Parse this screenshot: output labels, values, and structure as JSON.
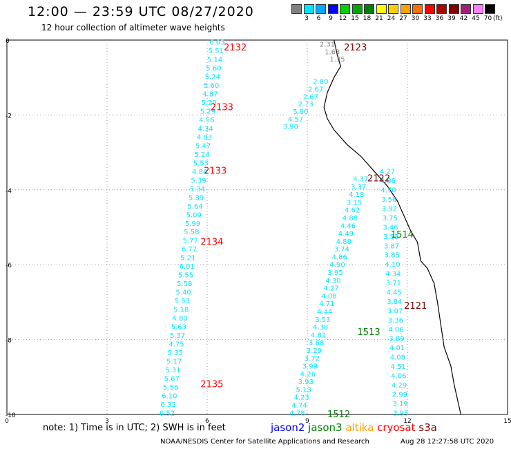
{
  "title": "12:00 — 23:59 UTC 08/27/2020",
  "subtitle": "12 hour collection of altimeter wave heights",
  "legend": {
    "ticks": [
      "3",
      "6",
      "9",
      "12",
      "15",
      "18",
      "21",
      "24",
      "27",
      "30",
      "33",
      "36",
      "39",
      "42",
      "45",
      "70"
    ],
    "unit": "(ft)",
    "colors": [
      "#808080",
      "#00e5ff",
      "#00a8ff",
      "#0000ff",
      "#00d000",
      "#00a800",
      "#008000",
      "#ffff00",
      "#ffd000",
      "#ffa000",
      "#ff7000",
      "#ff0000",
      "#b00000",
      "#800000",
      "#a0207a",
      "#ff80ff",
      "#000000"
    ]
  },
  "map": {
    "x_ticks": [
      "0",
      "3",
      "6",
      "9",
      "12",
      "15"
    ],
    "y_ticks": [
      "0",
      "-2",
      "-4",
      "-6",
      "-8",
      "-10"
    ],
    "xlim": [
      0,
      15
    ],
    "ylim": [
      -10,
      0
    ],
    "tracks": [
      {
        "color": "#00e5ff",
        "x0": 6.3,
        "x1": 4.8,
        "labels": [
          "6.03",
          "5.51",
          "5.14",
          "5.60",
          "5.24",
          "5.60",
          "4.87",
          "5.20",
          "5.29",
          "4.56",
          "4.34",
          "4.83",
          "5.47",
          "5.24",
          "5.53",
          "4.84",
          "5.39",
          "5.34",
          "5.39",
          "5.64",
          "5.09",
          "5.99",
          "5.58",
          "5.77",
          "6.77",
          "5.21",
          "6.01",
          "5.55",
          "5.58",
          "5.40",
          "5.53",
          "5.18",
          "4.80",
          "5.63",
          "5.37",
          "4.75",
          "5.35",
          "5.17",
          "5.31",
          "5.67",
          "5.56",
          "6.10",
          "6.32",
          "6.52"
        ]
      },
      {
        "color": "#00e5ff",
        "x0": 9.4,
        "x1": 8.5,
        "start": -1.1,
        "labels": [
          "2.80",
          "2.67",
          "2.67",
          "2.73",
          "5.80",
          "4.57",
          "3.90"
        ]
      },
      {
        "color": "#00e5ff",
        "x0": 10.6,
        "x1": 8.7,
        "start": -3.7,
        "labels": [
          "4.37",
          "3.37",
          "4.18",
          "3.15",
          "4.62",
          "4.88",
          "4.46",
          "4.49",
          "4.88",
          "3.74",
          "4.86",
          "4.90",
          "3.95",
          "4.30",
          "4.27",
          "4.08",
          "4.71",
          "4.44",
          "3.53",
          "4.38",
          "4.81",
          "3.68",
          "3.29",
          "3.72",
          "3.99",
          "4.26",
          "3.93",
          "5.13",
          "4.23",
          "4.74",
          "4.78"
        ]
      },
      {
        "color": "#00e5ff",
        "x0": 11.4,
        "x1": 11.8,
        "start": -3.5,
        "labels": [
          "4.27",
          "4.06",
          "4.70",
          "3.56",
          "3.92",
          "3.75",
          "3.46",
          "3.58",
          "3.87",
          "3.85",
          "4.10",
          "4.34",
          "3.71",
          "4.45",
          "3.84",
          "3.07",
          "3.36",
          "4.06",
          "3.89",
          "4.01",
          "4.08",
          "4.51",
          "4.06",
          "4.29",
          "2.99",
          "3.19",
          "3.95"
        ]
      },
      {
        "color": "#808080",
        "x0": 9.6,
        "x1": 9.9,
        "start": -0.1,
        "labels": [
          "2.31",
          "1.63",
          "1.35"
        ]
      }
    ],
    "pass_labels": [
      {
        "text": "2132",
        "color": "#ff0000",
        "x": 6.5,
        "y": -0.2
      },
      {
        "text": "2133",
        "color": "#ff0000",
        "x": 6.1,
        "y": -1.8
      },
      {
        "text": "2133",
        "color": "#ff0000",
        "x": 5.9,
        "y": -3.5
      },
      {
        "text": "2134",
        "color": "#ff0000",
        "x": 5.8,
        "y": -5.4
      },
      {
        "text": "2135",
        "color": "#ff0000",
        "x": 5.8,
        "y": -9.2
      },
      {
        "text": "2123",
        "color": "#800000",
        "x": 10.1,
        "y": -0.2
      },
      {
        "text": "2122",
        "color": "#800000",
        "x": 10.8,
        "y": -3.7
      },
      {
        "text": "2121",
        "color": "#800000",
        "x": 11.9,
        "y": -7.1
      },
      {
        "text": "1514",
        "color": "#008000",
        "x": 11.5,
        "y": -5.2
      },
      {
        "text": "1513",
        "color": "#008000",
        "x": 10.5,
        "y": -7.8
      },
      {
        "text": "1512",
        "color": "#008000",
        "x": 9.6,
        "y": -10.0
      }
    ]
  },
  "footer": {
    "note": "note: 1) Time is in UTC; 2) SWH is in feet",
    "satellites": [
      {
        "name": "jason2",
        "color": "#0000ff"
      },
      {
        "name": "jason3",
        "color": "#008000"
      },
      {
        "name": "altika",
        "color": "#ffa000"
      },
      {
        "name": "cryosat",
        "color": "#ff0000"
      },
      {
        "name": "s3a",
        "color": "#800000"
      }
    ],
    "credit": "NOAA/NESDIS Center for Satellite Applications and Research",
    "timestamp": "Aug 28 12:27:58 UTC 2020"
  }
}
